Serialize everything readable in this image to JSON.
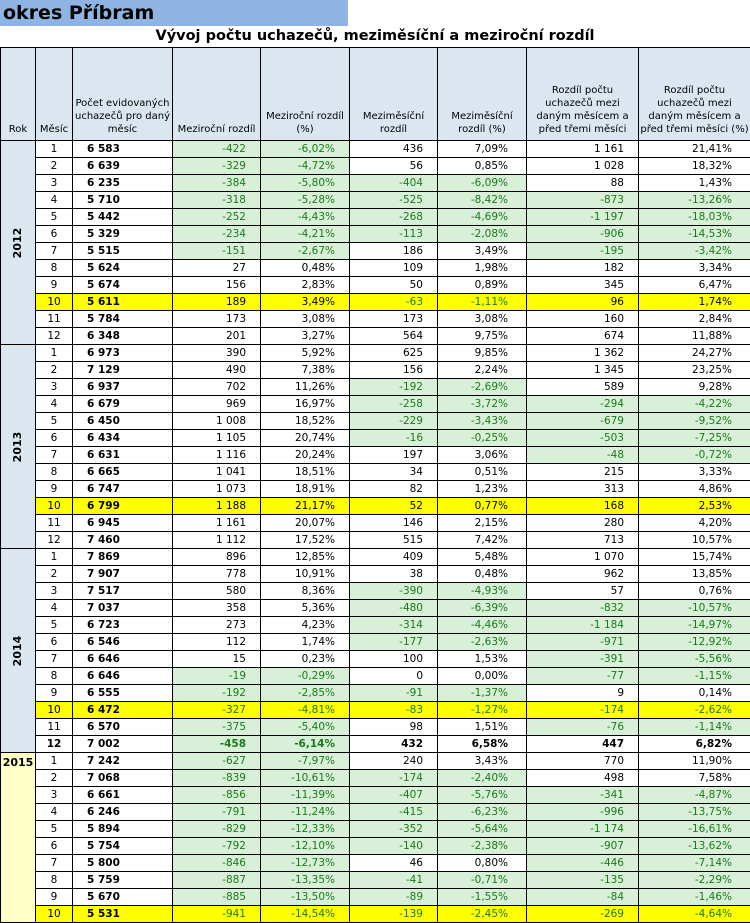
{
  "title": "okres Příbram",
  "subtitle": "Vývoj počtu uchazečů, meziměsíční a meziroční rozdíl",
  "colors": {
    "title_bg": "#8DB4E2",
    "header_bg": "#DCE6F1",
    "green_bg": "#D8F0D8",
    "highlight": "#FFFF00"
  },
  "headers": [
    "Rok",
    "Měsíc",
    "Počet evidovaných uchazečů pro daný měsíc",
    "Meziroční rozdíl",
    "Meziroční rozdíl (%)",
    "Meziměsíční rozdíl",
    "Meziměsíční rozdíl (%)",
    "Rozdíl počtu uchazečů mezi daným měsícem a před třemi měsíci",
    "Rozdíl počtu uchazečů mezi daným měsícem a před třemi měsíci (%)"
  ],
  "years": [
    {
      "year": "2012",
      "rows": [
        [
          "1",
          "6 583",
          "-422",
          "-6,02%",
          "436",
          "7,09%",
          "1 161",
          "21,41%"
        ],
        [
          "2",
          "6 639",
          "-329",
          "-4,72%",
          "56",
          "0,85%",
          "1 028",
          "18,32%"
        ],
        [
          "3",
          "6 235",
          "-384",
          "-5,80%",
          "-404",
          "-6,09%",
          "88",
          "1,43%"
        ],
        [
          "4",
          "5 710",
          "-318",
          "-5,28%",
          "-525",
          "-8,42%",
          "-873",
          "-13,26%"
        ],
        [
          "5",
          "5 442",
          "-252",
          "-4,43%",
          "-268",
          "-4,69%",
          "-1 197",
          "-18,03%"
        ],
        [
          "6",
          "5 329",
          "-234",
          "-4,21%",
          "-113",
          "-2,08%",
          "-906",
          "-14,53%"
        ],
        [
          "7",
          "5 515",
          "-151",
          "-2,67%",
          "186",
          "3,49%",
          "-195",
          "-3,42%"
        ],
        [
          "8",
          "5 624",
          "27",
          "0,48%",
          "109",
          "1,98%",
          "182",
          "3,34%"
        ],
        [
          "9",
          "5 674",
          "156",
          "2,83%",
          "50",
          "0,89%",
          "345",
          "6,47%"
        ],
        [
          "10",
          "5 611",
          "189",
          "3,49%",
          "-63",
          "-1,11%",
          "96",
          "1,74%"
        ],
        [
          "11",
          "5 784",
          "173",
          "3,08%",
          "173",
          "3,08%",
          "160",
          "2,84%"
        ],
        [
          "12",
          "6 348",
          "201",
          "3,27%",
          "564",
          "9,75%",
          "674",
          "11,88%"
        ]
      ]
    },
    {
      "year": "2013",
      "rows": [
        [
          "1",
          "6 973",
          "390",
          "5,92%",
          "625",
          "9,85%",
          "1 362",
          "24,27%"
        ],
        [
          "2",
          "7 129",
          "490",
          "7,38%",
          "156",
          "2,24%",
          "1 345",
          "23,25%"
        ],
        [
          "3",
          "6 937",
          "702",
          "11,26%",
          "-192",
          "-2,69%",
          "589",
          "9,28%"
        ],
        [
          "4",
          "6 679",
          "969",
          "16,97%",
          "-258",
          "-3,72%",
          "-294",
          "-4,22%"
        ],
        [
          "5",
          "6 450",
          "1 008",
          "18,52%",
          "-229",
          "-3,43%",
          "-679",
          "-9,52%"
        ],
        [
          "6",
          "6 434",
          "1 105",
          "20,74%",
          "-16",
          "-0,25%",
          "-503",
          "-7,25%"
        ],
        [
          "7",
          "6 631",
          "1 116",
          "20,24%",
          "197",
          "3,06%",
          "-48",
          "-0,72%"
        ],
        [
          "8",
          "6 665",
          "1 041",
          "18,51%",
          "34",
          "0,51%",
          "215",
          "3,33%"
        ],
        [
          "9",
          "6 747",
          "1 073",
          "18,91%",
          "82",
          "1,23%",
          "313",
          "4,86%"
        ],
        [
          "10",
          "6 799",
          "1 188",
          "21,17%",
          "52",
          "0,77%",
          "168",
          "2,53%"
        ],
        [
          "11",
          "6 945",
          "1 161",
          "20,07%",
          "146",
          "2,15%",
          "280",
          "4,20%"
        ],
        [
          "12",
          "7 460",
          "1 112",
          "17,52%",
          "515",
          "7,42%",
          "713",
          "10,57%"
        ]
      ]
    },
    {
      "year": "2014",
      "rows": [
        [
          "1",
          "7 869",
          "896",
          "12,85%",
          "409",
          "5,48%",
          "1 070",
          "15,74%"
        ],
        [
          "2",
          "7 907",
          "778",
          "10,91%",
          "38",
          "0,48%",
          "962",
          "13,85%"
        ],
        [
          "3",
          "7 517",
          "580",
          "8,36%",
          "-390",
          "-4,93%",
          "57",
          "0,76%"
        ],
        [
          "4",
          "7 037",
          "358",
          "5,36%",
          "-480",
          "-6,39%",
          "-832",
          "-10,57%"
        ],
        [
          "5",
          "6 723",
          "273",
          "4,23%",
          "-314",
          "-4,46%",
          "-1 184",
          "-14,97%"
        ],
        [
          "6",
          "6 546",
          "112",
          "1,74%",
          "-177",
          "-2,63%",
          "-971",
          "-12,92%"
        ],
        [
          "7",
          "6 646",
          "15",
          "0,23%",
          "100",
          "1,53%",
          "-391",
          "-5,56%"
        ],
        [
          "8",
          "6 646",
          "-19",
          "-0,29%",
          "0",
          "0,00%",
          "-77",
          "-1,15%"
        ],
        [
          "9",
          "6 555",
          "-192",
          "-2,85%",
          "-91",
          "-1,37%",
          "9",
          "0,14%"
        ],
        [
          "10",
          "6 472",
          "-327",
          "-4,81%",
          "-83",
          "-1,27%",
          "-174",
          "-2,62%"
        ],
        [
          "11",
          "6 570",
          "-375",
          "-5,40%",
          "98",
          "1,51%",
          "-76",
          "-1,14%"
        ],
        [
          "12",
          "7 002",
          "-458",
          "-6,14%",
          "432",
          "6,58%",
          "447",
          "6,82%"
        ]
      ]
    },
    {
      "year": "2015",
      "rows": [
        [
          "1",
          "7 242",
          "-627",
          "-7,97%",
          "240",
          "3,43%",
          "770",
          "11,90%"
        ],
        [
          "2",
          "7 068",
          "-839",
          "-10,61%",
          "-174",
          "-2,40%",
          "498",
          "7,58%"
        ],
        [
          "3",
          "6 661",
          "-856",
          "-11,39%",
          "-407",
          "-5,76%",
          "-341",
          "-4,87%"
        ],
        [
          "4",
          "6 246",
          "-791",
          "-11,24%",
          "-415",
          "-6,23%",
          "-996",
          "-13,75%"
        ],
        [
          "5",
          "5 894",
          "-829",
          "-12,33%",
          "-352",
          "-5,64%",
          "-1 174",
          "-16,61%"
        ],
        [
          "6",
          "5 754",
          "-792",
          "-12,10%",
          "-140",
          "-2,38%",
          "-907",
          "-13,62%"
        ],
        [
          "7",
          "5 800",
          "-846",
          "-12,73%",
          "46",
          "0,80%",
          "-446",
          "-7,14%"
        ],
        [
          "8",
          "5 759",
          "-887",
          "-13,35%",
          "-41",
          "-0,71%",
          "-135",
          "-2,29%"
        ],
        [
          "9",
          "5 670",
          "-885",
          "-13,50%",
          "-89",
          "-1,55%",
          "-84",
          "-1,46%"
        ],
        [
          "10",
          "5 531",
          "-941",
          "-14,54%",
          "-139",
          "-2,45%",
          "-269",
          "-4,64%"
        ]
      ]
    }
  ]
}
